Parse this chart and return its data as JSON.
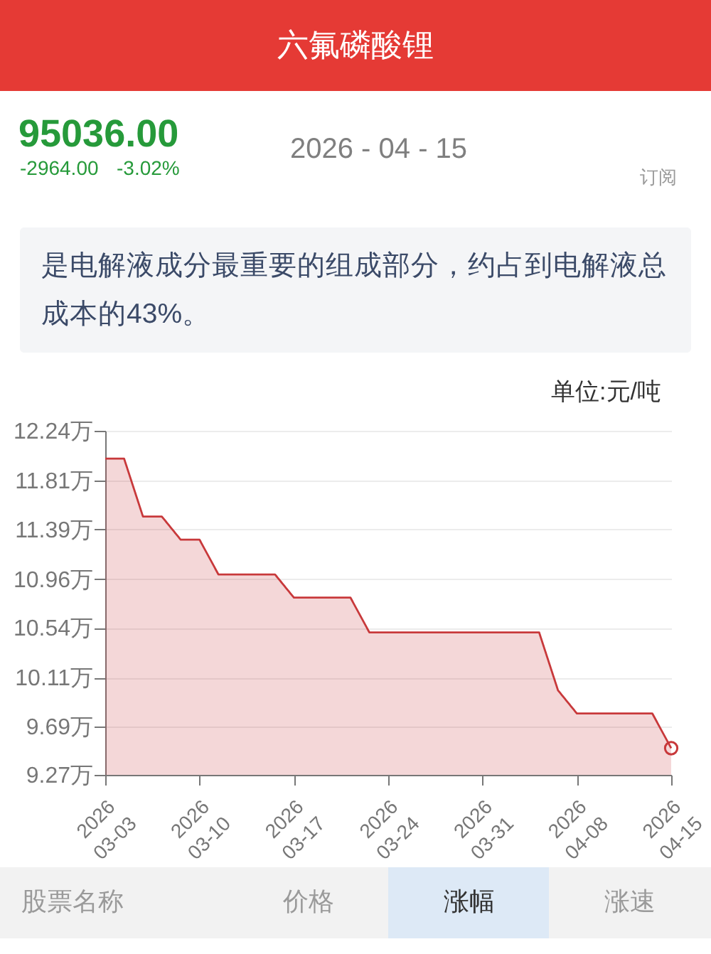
{
  "chart_data": {
    "type": "area",
    "title": "六氟磷酸锂",
    "annotations": [
      "95036.00",
      "-2964.00",
      "-3.02%",
      "2026 - 04 - 15",
      "订阅",
      "是电解液成分最重要的组成部分，约占到电解液总成本的43%。",
      "单位:元/吨",
      "股票名称",
      "价格",
      "涨幅",
      "涨速"
    ],
    "categories": [
      "2026\n03-03",
      null,
      null,
      null,
      null,
      "2026\n03-10",
      null,
      null,
      null,
      null,
      "2026\n03-17",
      null,
      null,
      null,
      null,
      "2026\n03-24",
      null,
      null,
      null,
      null,
      "2026\n03-31",
      null,
      null,
      null,
      null,
      "2026\n04-08",
      null,
      null,
      null,
      null,
      "2026\n04-15"
    ],
    "series": [
      {
        "color": "#c8393b",
        "values": [
          12.0,
          12.0,
          11.5,
          11.5,
          11.3,
          11.3,
          11.0,
          11.0,
          11.0,
          11.0,
          10.8,
          10.8,
          10.8,
          10.8,
          10.5,
          10.5,
          10.5,
          10.5,
          10.5,
          10.5,
          10.5,
          10.5,
          10.5,
          10.5,
          10.0,
          9.8,
          9.8,
          9.8,
          9.8,
          9.8,
          9.5
        ]
      },
      {
        "type": "scatter",
        "color": "#c8393b",
        "marker": "circle",
        "values": [
          null,
          null,
          null,
          null,
          null,
          null,
          null,
          null,
          null,
          null,
          null,
          null,
          null,
          null,
          null,
          null,
          null,
          null,
          null,
          null,
          null,
          null,
          null,
          null,
          null,
          null,
          null,
          null,
          null,
          null,
          9.5
        ]
      }
    ],
    "ylim": [
      9.27,
      12.24
    ],
    "yticks": [
      {
        "value": 9.27,
        "label": "9.27万"
      },
      {
        "value": 9.69,
        "label": "9.69万"
      },
      {
        "value": 10.11,
        "label": "10.11万"
      },
      {
        "value": 10.54,
        "label": "10.54万"
      },
      {
        "value": 10.96,
        "label": "10.96万"
      },
      {
        "value": 11.39,
        "label": "11.39万"
      },
      {
        "value": 11.81,
        "label": "11.81万"
      },
      {
        "value": 12.24,
        "label": "12.24万"
      }
    ],
    "grid": "y"
  }
}
